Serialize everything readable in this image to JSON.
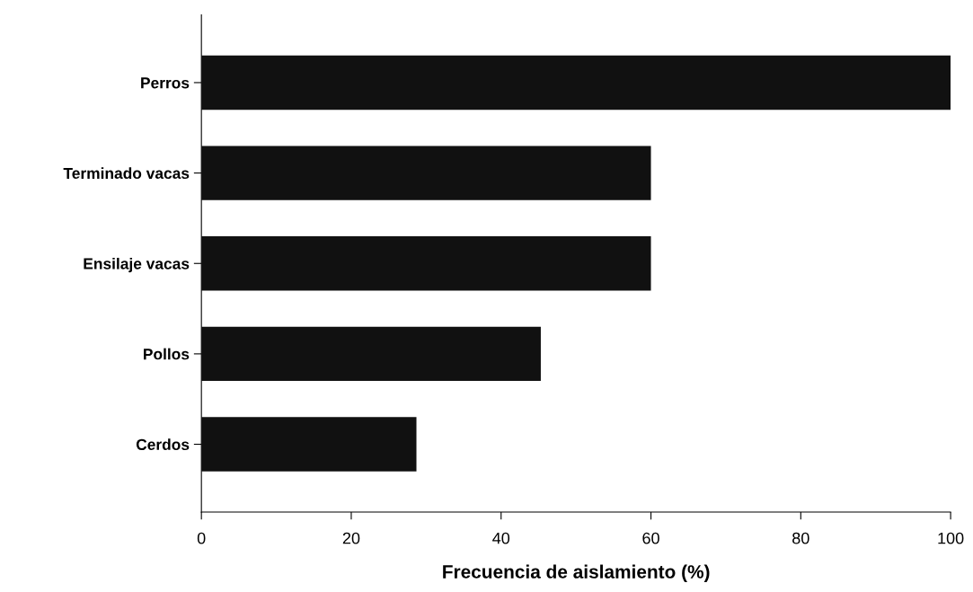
{
  "chart_data": {
    "type": "bar",
    "orientation": "horizontal",
    "xlabel": "Frecuencia de aislamiento (%)",
    "categories": [
      "Perros",
      "Terminado vacas",
      "Ensilaje vacas",
      "Pollos",
      "Cerdos"
    ],
    "values": [
      100,
      60,
      60,
      45.3,
      28.7
    ],
    "color": "#111111",
    "xlim": [
      0,
      100
    ],
    "xticks": [
      0,
      20,
      40,
      60,
      80,
      100
    ],
    "grid": false,
    "legend": false
  }
}
